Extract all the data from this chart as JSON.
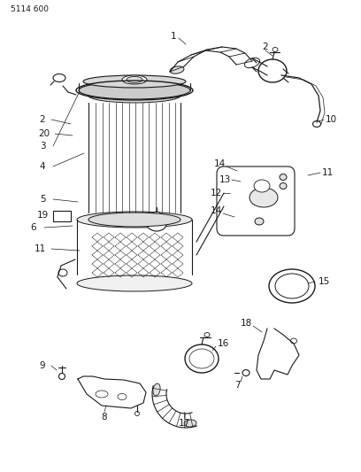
{
  "title": "5114 600",
  "bg_color": "#ffffff",
  "line_color": "#1a1a1a",
  "figsize": [
    4.08,
    5.33
  ],
  "dpi": 100
}
